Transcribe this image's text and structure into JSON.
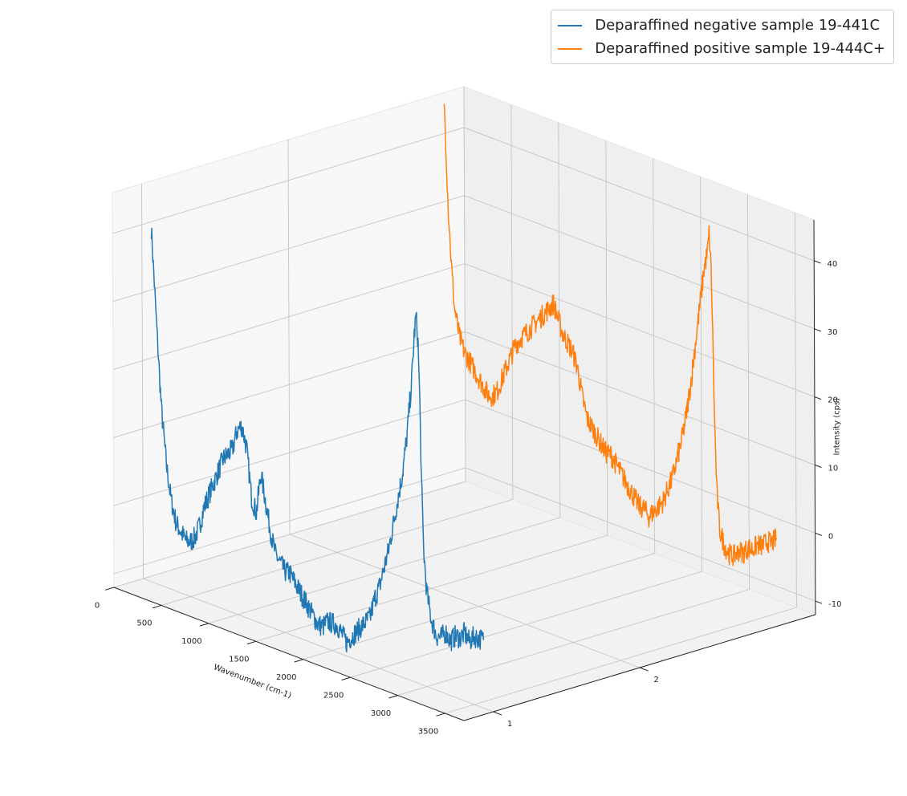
{
  "chart_data": {
    "type": "line",
    "projection": "3d",
    "title": "",
    "xlabel": "Wavenumber (cm-1)",
    "ylabel": "",
    "zlabel": "Intensity (cps)",
    "xlim": [
      0,
      3700
    ],
    "ylim": [
      0.8,
      3.2
    ],
    "zlim": [
      -12,
      46
    ],
    "x_ticks": [
      "0",
      "500",
      "1000",
      "1500",
      "2000",
      "2500",
      "3000",
      "3500"
    ],
    "y_ticks": [
      "1",
      "2"
    ],
    "z_ticks": [
      "-10",
      "0",
      "10",
      "20",
      "30",
      "40"
    ],
    "grid": true,
    "legend_position": "top-right",
    "series": [
      {
        "name": "Deparaffined negative sample 19-441C",
        "depth": 1,
        "color": "#1f77b4",
        "x": [
          100,
          130,
          160,
          200,
          250,
          300,
          350,
          400,
          450,
          500,
          550,
          600,
          650,
          700,
          750,
          800,
          850,
          900,
          950,
          1000,
          1050,
          1100,
          1150,
          1200,
          1250,
          1300,
          1350,
          1400,
          1450,
          1500,
          1550,
          1600,
          1650,
          1700,
          1750,
          1800,
          1850,
          1900,
          1950,
          2000,
          2050,
          2100,
          2150,
          2200,
          2250,
          2300,
          2350,
          2400,
          2450,
          2500,
          2550,
          2600,
          2650,
          2700,
          2750,
          2800,
          2850,
          2880,
          2900,
          2920,
          2935,
          2950,
          2970,
          3000,
          3050,
          3100,
          3150,
          3200,
          3250,
          3300,
          3350,
          3400,
          3450,
          3500,
          3550,
          3600
        ],
        "y": [
          40,
          32,
          24,
          14,
          6,
          1,
          -2,
          -3,
          -4,
          -4,
          -3,
          -1,
          2,
          4,
          6,
          8,
          10,
          11,
          12,
          15,
          16,
          13,
          6,
          4,
          10,
          6,
          2,
          -1,
          -2,
          -3,
          -3,
          -4,
          -5,
          -6,
          -7,
          -8,
          -9,
          -9,
          -8,
          -8,
          -8,
          -9,
          -10,
          -9,
          -8,
          -7,
          -6,
          -5,
          -2,
          0,
          3,
          6,
          10,
          14,
          18,
          24,
          32,
          39,
          42,
          38,
          30,
          18,
          8,
          2,
          -2,
          -4,
          -4,
          -3,
          -4,
          -3,
          -3,
          -2,
          -3,
          -2,
          -2,
          -2
        ]
      },
      {
        "name": "Deparaffined positive sample 19-444C+",
        "depth": 3,
        "color": "#ff7f0e",
        "x": [
          100,
          120,
          140,
          170,
          200,
          250,
          300,
          350,
          400,
          450,
          500,
          550,
          600,
          650,
          700,
          750,
          800,
          850,
          900,
          950,
          1000,
          1050,
          1100,
          1150,
          1200,
          1250,
          1300,
          1350,
          1400,
          1450,
          1500,
          1550,
          1600,
          1650,
          1700,
          1750,
          1800,
          1850,
          1900,
          1950,
          2000,
          2050,
          2100,
          2150,
          2200,
          2250,
          2300,
          2350,
          2400,
          2450,
          2500,
          2550,
          2600,
          2650,
          2700,
          2750,
          2800,
          2850,
          2880,
          2900,
          2920,
          2935,
          2950,
          2970,
          3000,
          3050,
          3100,
          3150,
          3200,
          3250,
          3300,
          3350,
          3400,
          3450,
          3500,
          3550,
          3600
        ],
        "y": [
          46,
          38,
          30,
          22,
          16,
          12,
          10,
          9,
          8,
          7,
          6,
          5,
          5,
          6,
          8,
          10,
          12,
          14,
          15,
          16,
          17,
          18,
          19,
          20,
          21,
          22,
          20,
          18,
          17,
          16,
          14,
          10,
          7,
          6,
          5,
          4,
          3,
          3,
          2,
          1,
          0,
          -1,
          -2,
          -3,
          -3,
          -4,
          -3,
          -2,
          -1,
          1,
          3,
          6,
          9,
          13,
          18,
          24,
          30,
          36,
          38,
          41,
          36,
          26,
          14,
          4,
          -2,
          -4,
          -5,
          -5,
          -4,
          -4,
          -3,
          -3,
          -2,
          -2,
          -1,
          -1,
          0
        ]
      }
    ]
  }
}
